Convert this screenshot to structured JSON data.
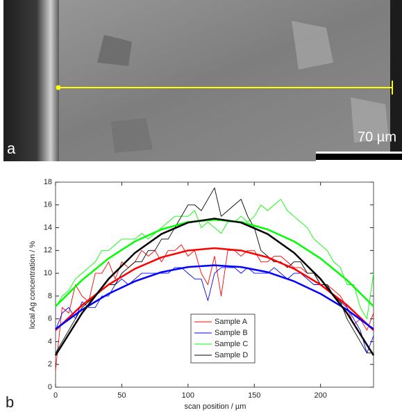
{
  "panel_a": {
    "label": "a",
    "scale_text": "70 µm"
  },
  "panel_b": {
    "label": "b"
  },
  "chart_data": {
    "type": "line",
    "xlabel": "scan position / µm",
    "ylabel": "local Ag concentration / %",
    "xlim": [
      0,
      240
    ],
    "ylim": [
      0,
      18
    ],
    "xticks": [
      0,
      50,
      100,
      150,
      200
    ],
    "yticks": [
      0,
      2,
      4,
      6,
      8,
      10,
      12,
      14,
      16,
      18
    ],
    "legend": "center",
    "x": [
      0,
      5,
      10,
      15,
      20,
      25,
      30,
      35,
      40,
      45,
      50,
      55,
      60,
      65,
      70,
      75,
      80,
      85,
      90,
      95,
      100,
      105,
      110,
      115,
      120,
      125,
      130,
      135,
      140,
      145,
      150,
      155,
      160,
      165,
      170,
      175,
      180,
      185,
      190,
      195,
      200,
      205,
      210,
      215,
      220,
      225,
      230,
      235,
      240
    ],
    "series": [
      {
        "name": "Sample A",
        "color": "#ff0000",
        "values": [
          1.5,
          7,
          6.5,
          9,
          8,
          7.5,
          10,
          10,
          11,
          9.5,
          11,
          10.5,
          11,
          12,
          11.5,
          12,
          11,
          12,
          12,
          12.5,
          11.5,
          12,
          10,
          9,
          11.5,
          8,
          12,
          12,
          11.5,
          12,
          12,
          11,
          11,
          11.5,
          11.5,
          11,
          10.5,
          10.5,
          10,
          10,
          9,
          9,
          8.5,
          8,
          7,
          5.5,
          6,
          5,
          6.5
        ]
      },
      {
        "name": "Sample B",
        "color": "#0000ff",
        "values": [
          5,
          6.5,
          7,
          6,
          7.5,
          7,
          7,
          8,
          8,
          9,
          9.5,
          9,
          9.5,
          10,
          10,
          10,
          10,
          10,
          10.5,
          10.5,
          10,
          9.5,
          9.5,
          7.6,
          10,
          10.5,
          10.5,
          10.5,
          10,
          10.5,
          10,
          10,
          10,
          10.5,
          10,
          9.5,
          10,
          10,
          9.5,
          9,
          9,
          8.5,
          8,
          7.5,
          7,
          6,
          5,
          3,
          4.5
        ]
      },
      {
        "name": "Sample C",
        "color": "#00ff00",
        "values": [
          7,
          8,
          8.5,
          9.5,
          10,
          10.5,
          11,
          12,
          12,
          12.5,
          13,
          13,
          13,
          13.5,
          13,
          13.5,
          14,
          14.5,
          15,
          15,
          15,
          15.5,
          14,
          14.5,
          14,
          13.5,
          14.5,
          14.5,
          15,
          14.5,
          15,
          16,
          15.5,
          16,
          16.5,
          15.5,
          15,
          14.5,
          14,
          13,
          12.5,
          12,
          11,
          10.5,
          9,
          9,
          7,
          6,
          10
        ]
      },
      {
        "name": "Sample D",
        "color": "#000000",
        "values": [
          3,
          4,
          5,
          6,
          7,
          7.5,
          8,
          8.5,
          9,
          9,
          10,
          10.5,
          11,
          11,
          12,
          12,
          13,
          13,
          14,
          15,
          16,
          16,
          15.5,
          16.5,
          17.5,
          15,
          15.5,
          16,
          16.5,
          15,
          14,
          12,
          11.5,
          11,
          11,
          10.5,
          11,
          11,
          10,
          10,
          9,
          9,
          8,
          7.5,
          6,
          5,
          4,
          3,
          3
        ]
      }
    ],
    "fits": [
      {
        "color": "#ff0000",
        "x": [
          0,
          20,
          40,
          60,
          80,
          100,
          120,
          140,
          160,
          180,
          200,
          220,
          240
        ],
        "values": [
          5.0,
          7.2,
          9.0,
          10.4,
          11.4,
          12.0,
          12.2,
          12.0,
          11.4,
          10.4,
          9.0,
          7.2,
          5.0
        ]
      },
      {
        "color": "#0000ff",
        "x": [
          0,
          20,
          40,
          60,
          80,
          100,
          120,
          140,
          160,
          180,
          200,
          220,
          240
        ],
        "values": [
          5.1,
          6.8,
          8.2,
          9.3,
          10.1,
          10.55,
          10.7,
          10.55,
          10.1,
          9.3,
          8.2,
          6.8,
          5.1
        ]
      },
      {
        "color": "#00ff00",
        "x": [
          0,
          20,
          40,
          60,
          80,
          100,
          120,
          140,
          160,
          180,
          200,
          220,
          240
        ],
        "values": [
          7.1,
          9.4,
          11.3,
          12.8,
          13.85,
          14.5,
          14.7,
          14.5,
          13.85,
          12.8,
          11.3,
          9.4,
          7.1
        ]
      },
      {
        "color": "#000000",
        "x": [
          0,
          20,
          40,
          60,
          80,
          100,
          120,
          140,
          160,
          180,
          200,
          220,
          240
        ],
        "values": [
          2.8,
          6.5,
          9.5,
          11.8,
          13.45,
          14.45,
          14.8,
          14.45,
          13.45,
          11.8,
          9.5,
          6.5,
          2.8
        ]
      }
    ]
  }
}
